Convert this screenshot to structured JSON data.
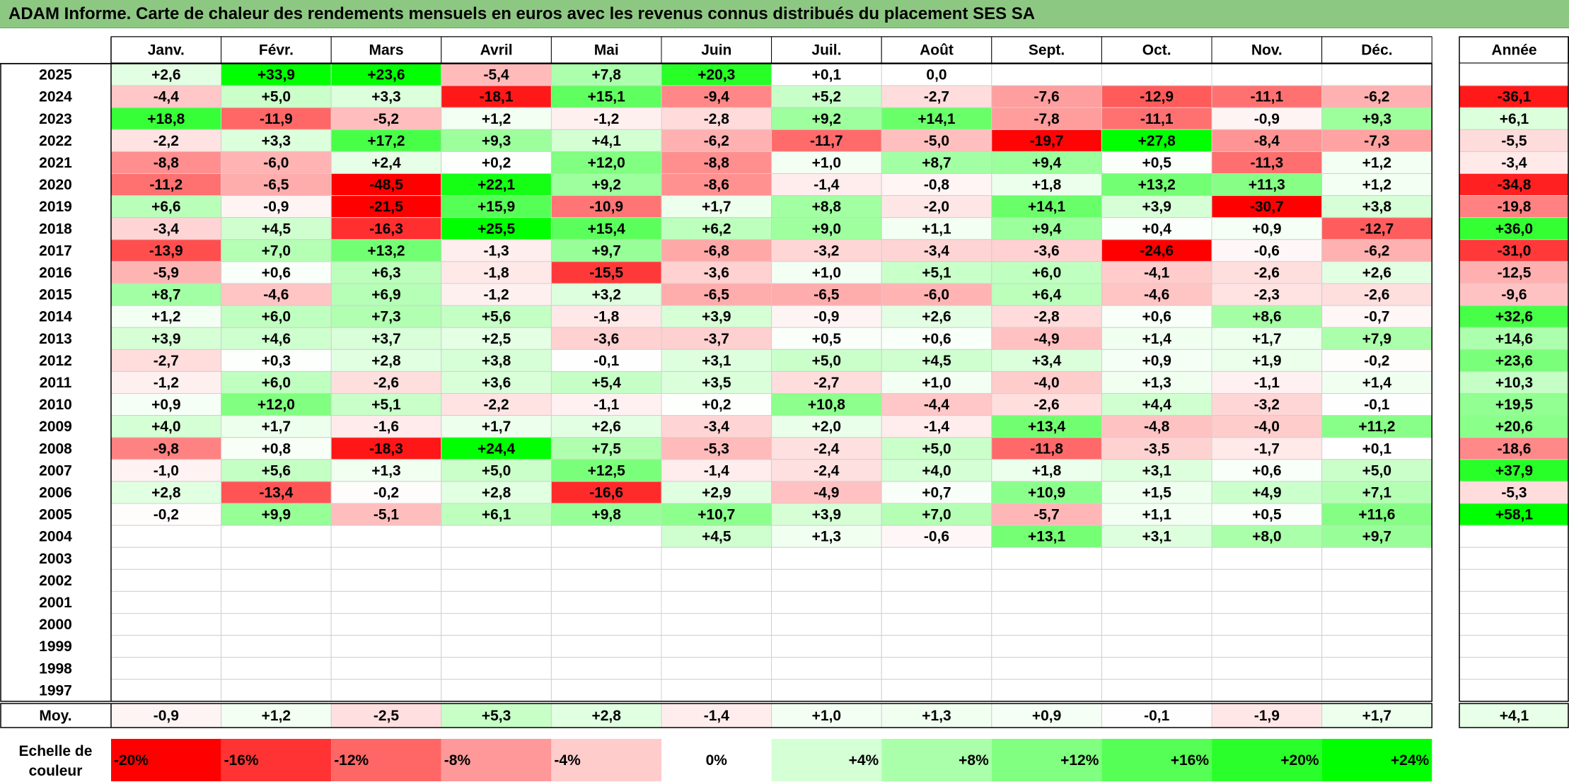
{
  "title": "ADAM Informe. Carte de chaleur des rendements mensuels en euros avec les revenus connus distribués du placement SES SA",
  "chart_data": {
    "type": "heatmap",
    "title": "ADAM Informe. Carte de chaleur des rendements mensuels en euros avec les revenus connus distribués du placement SES SA",
    "columns": [
      "Janv.",
      "Févr.",
      "Mars",
      "Avril",
      "Mai",
      "Juin",
      "Juil.",
      "Août",
      "Sept.",
      "Oct.",
      "Nov.",
      "Déc."
    ],
    "year_column_label": "Année",
    "rows": [
      {
        "year": "2025",
        "values": [
          "+2,6",
          "+33,9",
          "+23,6",
          "-5,4",
          "+7,8",
          "+20,3",
          "+0,1",
          "0,0",
          "",
          "",
          "",
          ""
        ],
        "annual": ""
      },
      {
        "year": "2024",
        "values": [
          "-4,4",
          "+5,0",
          "+3,3",
          "-18,1",
          "+15,1",
          "-9,4",
          "+5,2",
          "-2,7",
          "-7,6",
          "-12,9",
          "-11,1",
          "-6,2"
        ],
        "annual": "-36,1"
      },
      {
        "year": "2023",
        "values": [
          "+18,8",
          "-11,9",
          "-5,2",
          "+1,2",
          "-1,2",
          "-2,8",
          "+9,2",
          "+14,1",
          "-7,8",
          "-11,1",
          "-0,9",
          "+9,3"
        ],
        "annual": "+6,1"
      },
      {
        "year": "2022",
        "values": [
          "-2,2",
          "+3,3",
          "+17,2",
          "+9,3",
          "+4,1",
          "-6,2",
          "-11,7",
          "-5,0",
          "-19,7",
          "+27,8",
          "-8,4",
          "-7,3"
        ],
        "annual": "-5,5"
      },
      {
        "year": "2021",
        "values": [
          "-8,8",
          "-6,0",
          "+2,4",
          "+0,2",
          "+12,0",
          "-8,8",
          "+1,0",
          "+8,7",
          "+9,4",
          "+0,5",
          "-11,3",
          "+1,2"
        ],
        "annual": "-3,4"
      },
      {
        "year": "2020",
        "values": [
          "-11,2",
          "-6,5",
          "-48,5",
          "+22,1",
          "+9,2",
          "-8,6",
          "-1,4",
          "-0,8",
          "+1,8",
          "+13,2",
          "+11,3",
          "+1,2"
        ],
        "annual": "-34,8"
      },
      {
        "year": "2019",
        "values": [
          "+6,6",
          "-0,9",
          "-21,5",
          "+15,9",
          "-10,9",
          "+1,7",
          "+8,8",
          "-2,0",
          "+14,1",
          "+3,9",
          "-30,7",
          "+3,8"
        ],
        "annual": "-19,8"
      },
      {
        "year": "2018",
        "values": [
          "-3,4",
          "+4,5",
          "-16,3",
          "+25,5",
          "+15,4",
          "+6,2",
          "+9,0",
          "+1,1",
          "+9,4",
          "+0,4",
          "+0,9",
          "-12,7"
        ],
        "annual": "+36,0"
      },
      {
        "year": "2017",
        "values": [
          "-13,9",
          "+7,0",
          "+13,2",
          "-1,3",
          "+9,7",
          "-6,8",
          "-3,2",
          "-3,4",
          "-3,6",
          "-24,6",
          "-0,6",
          "-6,2"
        ],
        "annual": "-31,0"
      },
      {
        "year": "2016",
        "values": [
          "-5,9",
          "+0,6",
          "+6,3",
          "-1,8",
          "-15,5",
          "-3,6",
          "+1,0",
          "+5,1",
          "+6,0",
          "-4,1",
          "-2,6",
          "+2,6"
        ],
        "annual": "-12,5"
      },
      {
        "year": "2015",
        "values": [
          "+8,7",
          "-4,6",
          "+6,9",
          "-1,2",
          "+3,2",
          "-6,5",
          "-6,5",
          "-6,0",
          "+6,4",
          "-4,6",
          "-2,3",
          "-2,6"
        ],
        "annual": "-9,6"
      },
      {
        "year": "2014",
        "values": [
          "+1,2",
          "+6,0",
          "+7,3",
          "+5,6",
          "-1,8",
          "+3,9",
          "-0,9",
          "+2,6",
          "-2,8",
          "+0,6",
          "+8,6",
          "-0,7"
        ],
        "annual": "+32,6"
      },
      {
        "year": "2013",
        "values": [
          "+3,9",
          "+4,6",
          "+3,7",
          "+2,5",
          "-3,6",
          "-3,7",
          "+0,5",
          "+0,6",
          "-4,9",
          "+1,4",
          "+1,7",
          "+7,9"
        ],
        "annual": "+14,6"
      },
      {
        "year": "2012",
        "values": [
          "-2,7",
          "+0,3",
          "+2,8",
          "+3,8",
          "-0,1",
          "+3,1",
          "+5,0",
          "+4,5",
          "+3,4",
          "+0,9",
          "+1,9",
          "-0,2"
        ],
        "annual": "+23,6"
      },
      {
        "year": "2011",
        "values": [
          "-1,2",
          "+6,0",
          "-2,6",
          "+3,6",
          "+5,4",
          "+3,5",
          "-2,7",
          "+1,0",
          "-4,0",
          "+1,3",
          "-1,1",
          "+1,4"
        ],
        "annual": "+10,3"
      },
      {
        "year": "2010",
        "values": [
          "+0,9",
          "+12,0",
          "+5,1",
          "-2,2",
          "-1,1",
          "+0,2",
          "+10,8",
          "-4,4",
          "-2,6",
          "+4,4",
          "-3,2",
          "-0,1"
        ],
        "annual": "+19,5"
      },
      {
        "year": "2009",
        "values": [
          "+4,0",
          "+1,7",
          "-1,6",
          "+1,7",
          "+2,6",
          "-3,4",
          "+2,0",
          "-1,4",
          "+13,4",
          "-4,8",
          "-4,0",
          "+11,2"
        ],
        "annual": "+20,6"
      },
      {
        "year": "2008",
        "values": [
          "-9,8",
          "+0,8",
          "-18,3",
          "+24,4",
          "+7,5",
          "-5,3",
          "-2,4",
          "+5,0",
          "-11,8",
          "-3,5",
          "-1,7",
          "+0,1"
        ],
        "annual": "-18,6"
      },
      {
        "year": "2007",
        "values": [
          "-1,0",
          "+5,6",
          "+1,3",
          "+5,0",
          "+12,5",
          "-1,4",
          "-2,4",
          "+4,0",
          "+1,8",
          "+3,1",
          "+0,6",
          "+5,0"
        ],
        "annual": "+37,9"
      },
      {
        "year": "2006",
        "values": [
          "+2,8",
          "-13,4",
          "-0,2",
          "+2,8",
          "-16,6",
          "+2,9",
          "-4,9",
          "+0,7",
          "+10,9",
          "+1,5",
          "+4,9",
          "+7,1"
        ],
        "annual": "-5,3"
      },
      {
        "year": "2005",
        "values": [
          "-0,2",
          "+9,9",
          "-5,1",
          "+6,1",
          "+9,8",
          "+10,7",
          "+3,9",
          "+7,0",
          "-5,7",
          "+1,1",
          "+0,5",
          "+11,6"
        ],
        "annual": "+58,1"
      },
      {
        "year": "2004",
        "values": [
          "",
          "",
          "",
          "",
          "",
          "+4,5",
          "+1,3",
          "-0,6",
          "+13,1",
          "+3,1",
          "+8,0",
          "+9,7"
        ],
        "annual": ""
      },
      {
        "year": "2003",
        "values": [
          "",
          "",
          "",
          "",
          "",
          "",
          "",
          "",
          "",
          "",
          "",
          ""
        ],
        "annual": ""
      },
      {
        "year": "2002",
        "values": [
          "",
          "",
          "",
          "",
          "",
          "",
          "",
          "",
          "",
          "",
          "",
          ""
        ],
        "annual": ""
      },
      {
        "year": "2001",
        "values": [
          "",
          "",
          "",
          "",
          "",
          "",
          "",
          "",
          "",
          "",
          "",
          ""
        ],
        "annual": ""
      },
      {
        "year": "2000",
        "values": [
          "",
          "",
          "",
          "",
          "",
          "",
          "",
          "",
          "",
          "",
          "",
          ""
        ],
        "annual": ""
      },
      {
        "year": "1999",
        "values": [
          "",
          "",
          "",
          "",
          "",
          "",
          "",
          "",
          "",
          "",
          "",
          ""
        ],
        "annual": ""
      },
      {
        "year": "1998",
        "values": [
          "",
          "",
          "",
          "",
          "",
          "",
          "",
          "",
          "",
          "",
          "",
          ""
        ],
        "annual": ""
      },
      {
        "year": "1997",
        "values": [
          "",
          "",
          "",
          "",
          "",
          "",
          "",
          "",
          "",
          "",
          "",
          ""
        ],
        "annual": ""
      }
    ],
    "average": {
      "label": "Moy.",
      "values": [
        "-0,9",
        "+1,2",
        "-2,5",
        "+5,3",
        "+2,8",
        "-1,4",
        "+1,0",
        "+1,3",
        "+0,9",
        "-0,1",
        "-1,9",
        "+1,7"
      ],
      "annual": "+4,1"
    },
    "scale": {
      "label_line1": "Echelle de",
      "label_line2": "couleur",
      "steps": [
        "-20%",
        "-16%",
        "-12%",
        "-8%",
        "-4%",
        "0%",
        "+4%",
        "+8%",
        "+12%",
        "+16%",
        "+20%",
        "+24%"
      ]
    },
    "colors": {
      "negative_max": "#ff0000",
      "neutral": "#ffffff",
      "positive_max": "#00ff00",
      "title_bar": "#8dc882"
    }
  }
}
